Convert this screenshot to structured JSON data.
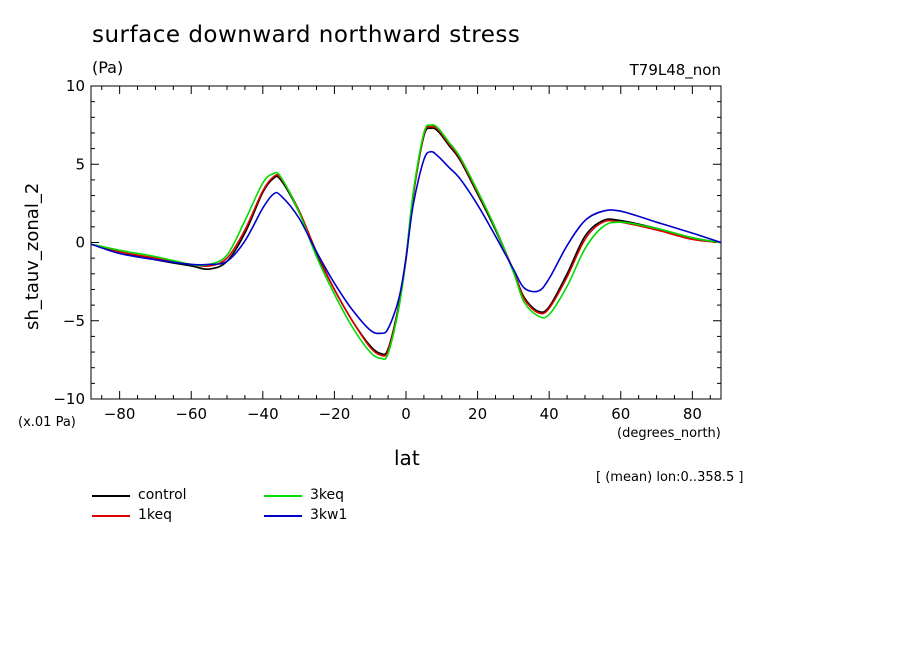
{
  "chart_data": {
    "type": "line",
    "title": "surface downward northward stress",
    "units": "(Pa)",
    "run_label": "T79L48_non",
    "scale_note": "(x.01 Pa)",
    "xlabel": "lat",
    "x_units": "(degrees_north)",
    "ylabel": "sh_tauv_zonal_2",
    "mean_note": "[ (mean) lon:0..358.5 ]",
    "xlim": [
      -88,
      88
    ],
    "ylim": [
      -10,
      10
    ],
    "x_ticks": [
      -80,
      -60,
      -40,
      -20,
      0,
      20,
      40,
      60,
      80
    ],
    "y_ticks": [
      -10,
      -5,
      0,
      5,
      10
    ],
    "x_tick_labels": [
      "-80",
      "-60",
      "-40",
      "-20",
      "0",
      "20",
      "40",
      "60",
      "80"
    ],
    "y_tick_labels": [
      "-10",
      "-5",
      "0",
      "5",
      "10"
    ],
    "grid": false,
    "legend_position": "bottom-left",
    "x": [
      -88,
      -80,
      -70,
      -60,
      -55,
      -50,
      -45,
      -40,
      -37,
      -35,
      -30,
      -25,
      -20,
      -15,
      -10,
      -7,
      -5,
      -2,
      0,
      2,
      5,
      7,
      9,
      12,
      15,
      20,
      25,
      30,
      33,
      37,
      40,
      45,
      50,
      55,
      60,
      70,
      80,
      88
    ],
    "series": [
      {
        "name": "control",
        "color": "#000000",
        "values": [
          -0.1,
          -0.6,
          -1.1,
          -1.5,
          -1.7,
          -1.2,
          0.6,
          3.2,
          4.1,
          4.0,
          2.0,
          -0.7,
          -3.0,
          -5.0,
          -6.6,
          -7.1,
          -6.8,
          -4.0,
          -1.0,
          3.0,
          6.8,
          7.3,
          7.1,
          6.2,
          5.3,
          3.1,
          0.8,
          -1.8,
          -3.5,
          -4.4,
          -4.1,
          -2.0,
          0.4,
          1.4,
          1.4,
          0.9,
          0.3,
          0.0
        ]
      },
      {
        "name": "1keq",
        "color": "#dd0000",
        "values": [
          -0.1,
          -0.6,
          -1.0,
          -1.4,
          -1.5,
          -1.0,
          0.8,
          3.3,
          4.2,
          4.1,
          2.1,
          -0.6,
          -3.0,
          -5.0,
          -6.7,
          -7.2,
          -6.9,
          -4.1,
          -1.1,
          3.0,
          6.9,
          7.4,
          7.2,
          6.3,
          5.4,
          3.2,
          0.9,
          -1.8,
          -3.6,
          -4.5,
          -4.2,
          -2.2,
          0.2,
          1.3,
          1.3,
          0.8,
          0.2,
          0.0
        ]
      },
      {
        "name": "3keq",
        "color": "#00dd00",
        "values": [
          -0.1,
          -0.5,
          -0.9,
          -1.4,
          -1.4,
          -0.8,
          1.4,
          3.8,
          4.4,
          4.2,
          2.0,
          -0.9,
          -3.3,
          -5.4,
          -7.0,
          -7.4,
          -7.1,
          -4.2,
          -1.0,
          3.2,
          7.0,
          7.5,
          7.3,
          6.4,
          5.5,
          3.3,
          0.9,
          -1.9,
          -3.8,
          -4.7,
          -4.6,
          -2.8,
          -0.4,
          1.0,
          1.3,
          0.9,
          0.3,
          0.0
        ]
      },
      {
        "name": "3kw1",
        "color": "#0000cc",
        "values": [
          -0.1,
          -0.7,
          -1.1,
          -1.4,
          -1.4,
          -1.2,
          0.1,
          2.2,
          3.1,
          3.0,
          1.6,
          -0.6,
          -2.6,
          -4.3,
          -5.6,
          -5.8,
          -5.5,
          -3.6,
          -1.0,
          2.4,
          5.3,
          5.8,
          5.5,
          4.8,
          4.1,
          2.4,
          0.4,
          -1.7,
          -2.9,
          -3.1,
          -2.3,
          -0.2,
          1.4,
          2.0,
          2.0,
          1.3,
          0.6,
          0.0
        ]
      }
    ]
  }
}
